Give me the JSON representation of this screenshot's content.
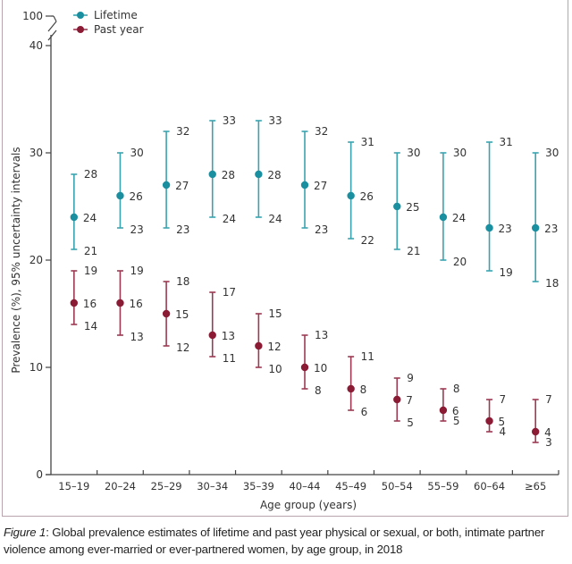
{
  "chart_data": {
    "type": "scatter",
    "subtype": "point-with-error-bars",
    "title": "",
    "xlabel": "Age group (years)",
    "ylabel": "Prevalence (%), 95% uncertainty intervals",
    "categories": [
      "15–19",
      "20–24",
      "25–29",
      "30–34",
      "35–39",
      "40–44",
      "45–49",
      "50–54",
      "55–59",
      "60–64",
      "≥65"
    ],
    "y_ticks": [
      0,
      10,
      20,
      30,
      40,
      100
    ],
    "y_tick_labels": [
      "0",
      "10",
      "20",
      "30",
      "40",
      "100"
    ],
    "ylim": [
      0,
      40
    ],
    "y_axis_break": {
      "from": 40,
      "to": 100
    },
    "grid": false,
    "legend": {
      "placement": "top-left",
      "entries": [
        "Lifetime",
        "Past year"
      ]
    },
    "series": [
      {
        "name": "Lifetime",
        "color": "#1a8fa0",
        "values": [
          24,
          26,
          27,
          28,
          28,
          27,
          26,
          25,
          24,
          23,
          23
        ],
        "lower": [
          21,
          23,
          23,
          24,
          24,
          23,
          22,
          21,
          20,
          19,
          18
        ],
        "upper": [
          28,
          30,
          32,
          33,
          33,
          32,
          31,
          30,
          30,
          31,
          30
        ]
      },
      {
        "name": "Past year",
        "color": "#8b1a35",
        "values": [
          16,
          16,
          15,
          13,
          12,
          10,
          8,
          7,
          6,
          5,
          4
        ],
        "lower": [
          14,
          13,
          12,
          11,
          10,
          8,
          6,
          5,
          5,
          4,
          3
        ],
        "upper": [
          19,
          19,
          18,
          17,
          15,
          13,
          11,
          9,
          8,
          7,
          7
        ]
      }
    ]
  },
  "caption": {
    "figure_label": "Figure 1",
    "text": ": Global prevalence estimates of lifetime and past year physical or sexual, or both, intimate partner violence among ever-married or ever-partnered women, by age group, in 2018"
  },
  "colors": {
    "lifetime": "#1a8fa0",
    "lifetime_bar": "#3aa3b0",
    "past_year": "#8b1a35",
    "past_year_bar": "#9b3a52",
    "axis": "#444444",
    "frame": "#b9a3ad"
  }
}
